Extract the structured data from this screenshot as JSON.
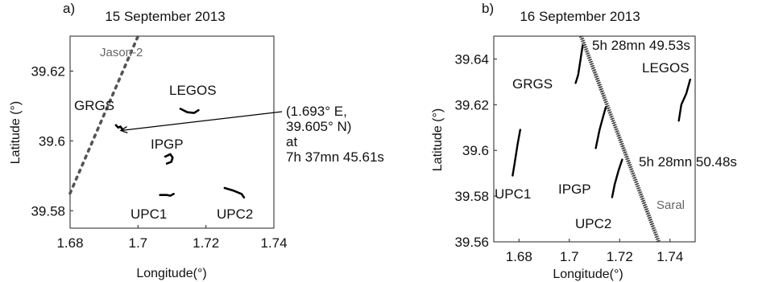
{
  "chart_data": [
    {
      "type": "scatter",
      "panel_label": "a)",
      "title": "15 September 2013",
      "xlabel": "Longitude(°)",
      "ylabel": "Latitude (°)",
      "xlim": [
        1.68,
        1.74
      ],
      "ylim": [
        39.575,
        39.63
      ],
      "xticks": [
        1.68,
        1.7,
        1.72,
        1.74
      ],
      "xtick_labels": [
        "1.68",
        "1.7",
        "1.72",
        "1.74"
      ],
      "yticks": [
        39.58,
        39.6,
        39.62
      ],
      "ytick_labels": [
        "39.58",
        "39.6",
        "39.62"
      ],
      "satellite": {
        "name": "Jason-2",
        "style": "dotted",
        "color": "#555555",
        "from": [
          1.68,
          39.585
        ],
        "to": [
          1.7,
          39.63
        ]
      },
      "tracks": [
        {
          "name": "GRGS",
          "points": [
            [
              1.6935,
              39.6045
            ],
            [
              1.6942,
              39.6038
            ],
            [
              1.6948,
              39.6041
            ],
            [
              1.6952,
              39.6036
            ],
            [
              1.6955,
              39.6032
            ]
          ]
        },
        {
          "name": "LEGOS",
          "points": [
            [
              1.7125,
              39.6092
            ],
            [
              1.7145,
              39.6082
            ],
            [
              1.7165,
              39.608
            ],
            [
              1.7178,
              39.6088
            ]
          ]
        },
        {
          "name": "IPGP",
          "points": [
            [
              1.708,
              39.5955
            ],
            [
              1.7095,
              39.5962
            ],
            [
              1.7102,
              39.5952
            ],
            [
              1.7098,
              39.594
            ],
            [
              1.7085,
              39.5935
            ]
          ]
        },
        {
          "name": "UPC1",
          "points": [
            [
              1.7065,
              39.5845
            ],
            [
              1.7085,
              39.5845
            ],
            [
              1.7095,
              39.5843
            ],
            [
              1.7105,
              39.5848
            ]
          ]
        },
        {
          "name": "UPC2",
          "points": [
            [
              1.7255,
              39.5865
            ],
            [
              1.728,
              39.5858
            ],
            [
              1.7305,
              39.5848
            ],
            [
              1.7312,
              39.5838
            ]
          ]
        }
      ],
      "annotation": {
        "lines": [
          "(1.693° E,",
          "39.605° N)",
          "at",
          "7h 37mn 45.61s"
        ],
        "target": [
          1.6935,
          39.6032
        ]
      },
      "grid": false
    },
    {
      "type": "scatter",
      "panel_label": "b)",
      "title": "16 September 2013",
      "xlabel": "Longitude(°)",
      "ylabel": "Latitude (°)",
      "xlim": [
        1.67,
        1.75
      ],
      "ylim": [
        39.56,
        39.65
      ],
      "xticks": [
        1.68,
        1.7,
        1.72,
        1.74
      ],
      "xtick_labels": [
        "1.68",
        "1.7",
        "1.72",
        "1.74"
      ],
      "yticks": [
        39.56,
        39.58,
        39.6,
        39.62,
        39.64
      ],
      "ytick_labels": [
        "39.56",
        "39.58",
        "39.6",
        "39.62",
        "39.64"
      ],
      "satellite": {
        "name": "Saral",
        "style": "dense-dotted",
        "color": "#333333",
        "from": [
          1.7047,
          39.65
        ],
        "to": [
          1.7355,
          39.56
        ]
      },
      "tracks": [
        {
          "name": "GRGS",
          "points": [
            [
              1.7025,
              39.6295
            ],
            [
              1.7035,
              39.633
            ],
            [
              1.7045,
              39.64
            ],
            [
              1.7053,
              39.646
            ]
          ]
        },
        {
          "name": "LEGOS",
          "points": [
            [
              1.7435,
              39.613
            ],
            [
              1.7445,
              39.62
            ],
            [
              1.7465,
              39.625
            ],
            [
              1.748,
              39.631
            ]
          ]
        },
        {
          "name": "IPGP",
          "points": [
            [
              1.7105,
              39.601
            ],
            [
              1.712,
              39.609
            ],
            [
              1.7135,
              39.615
            ],
            [
              1.7145,
              39.619
            ]
          ]
        },
        {
          "name": "UPC1",
          "points": [
            [
              1.6775,
              39.589
            ],
            [
              1.6785,
              39.596
            ],
            [
              1.6795,
              39.603
            ],
            [
              1.6805,
              39.609
            ]
          ]
        },
        {
          "name": "UPC2",
          "points": [
            [
              1.717,
              39.5795
            ],
            [
              1.718,
              39.585
            ],
            [
              1.7195,
              39.591
            ],
            [
              1.721,
              39.596
            ]
          ]
        }
      ],
      "annotations": [
        {
          "text": "5h 28mn 49.53s",
          "at": [
            1.7055,
            39.6465
          ]
        },
        {
          "text": "5h 28mn 50.48s",
          "at": [
            1.7215,
            39.5965
          ]
        }
      ],
      "grid": false
    }
  ]
}
